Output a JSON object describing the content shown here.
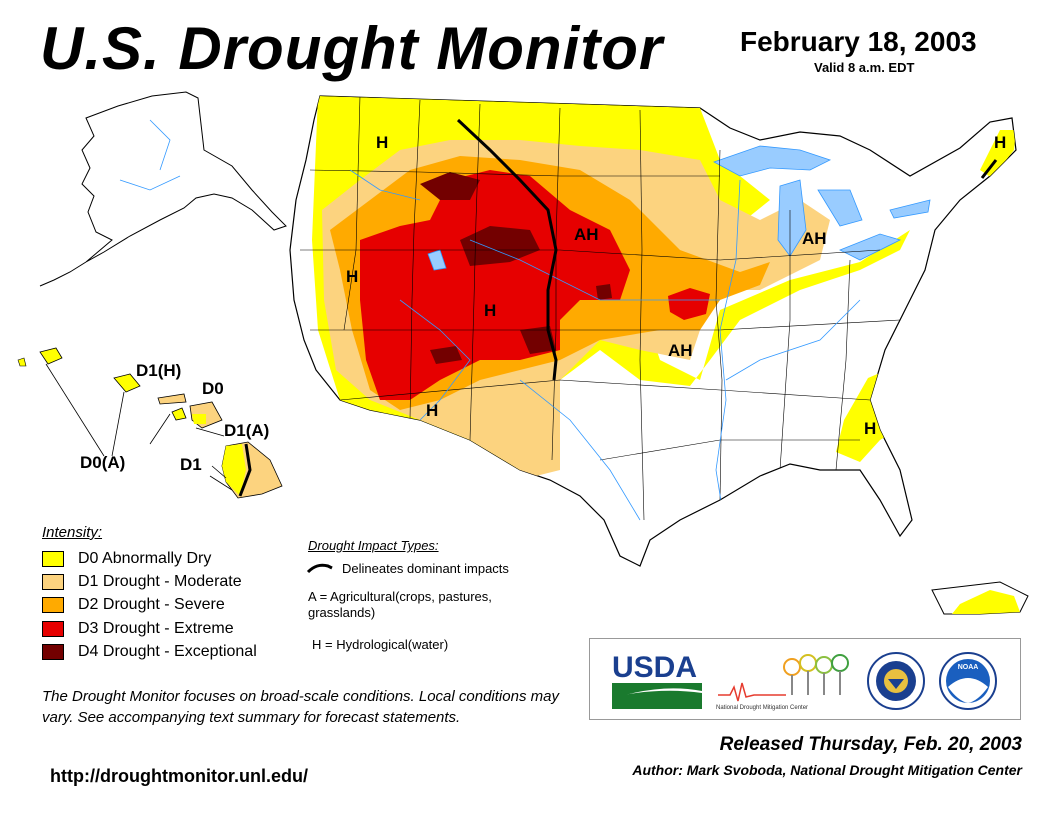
{
  "header": {
    "title": "U.S. Drought Monitor",
    "date": "February 18, 2003",
    "valid": "Valid 8 a.m. EDT"
  },
  "map": {
    "region_labels": [
      "H",
      "H",
      "AH",
      "AH",
      "H",
      "H",
      "AH",
      "H",
      "H"
    ],
    "hawaii_labels": [
      "D1(H)",
      "D0",
      "D1(A)",
      "D0(A)",
      "D1"
    ]
  },
  "colors": {
    "d0": "#FFFF00",
    "d1": "#FCD37F",
    "d2": "#FFAA00",
    "d3": "#E60000",
    "d4": "#730000",
    "water": "#99CCFF"
  },
  "legend": {
    "title": "Intensity:",
    "items": [
      {
        "label": "D0 Abnormally Dry",
        "color": "#FFFF00"
      },
      {
        "label": "D1 Drought - Moderate",
        "color": "#FCD37F"
      },
      {
        "label": "D2 Drought - Severe",
        "color": "#FFAA00"
      },
      {
        "label": "D3 Drought - Extreme",
        "color": "#E60000"
      },
      {
        "label": "D4 Drought - Exceptional",
        "color": "#730000"
      }
    ]
  },
  "impacts": {
    "title": "Drought Impact Types:",
    "line_desc": "Delineates dominant impacts",
    "agricultural": "A = Agricultural(crops, pastures, grasslands)",
    "hydrological": "H = Hydrological(water)"
  },
  "disclaimer": "The Drought Monitor focuses on broad-scale conditions. Local conditions may vary. See accompanying text summary for forecast statements.",
  "url": "http://droughtmonitor.unl.edu/",
  "logos": {
    "usda": "USDA",
    "ndmc": "National Drought Mitigation Center",
    "doc_icon": "department-of-commerce-seal-icon",
    "noaa": "NOAA",
    "noaa_icon": "noaa-logo-icon"
  },
  "footer": {
    "released": "Released Thursday, Feb. 20, 2003",
    "author": "Author: Mark Svoboda, National Drought Mitigation Center"
  }
}
